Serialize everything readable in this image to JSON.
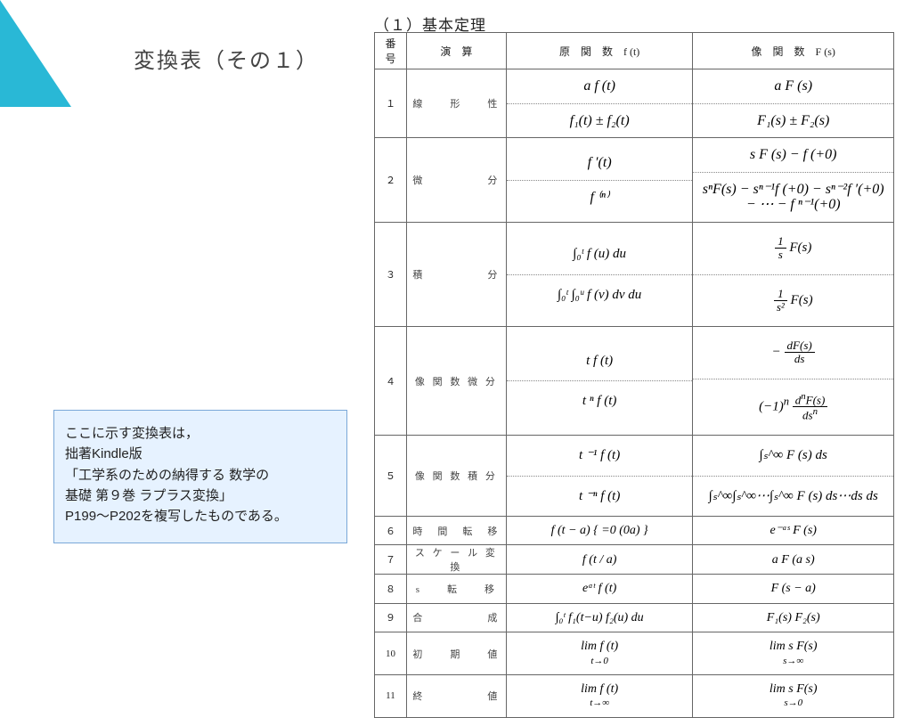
{
  "colors": {
    "accent": "#29b8d6",
    "noteBg": "#e6f2ff",
    "noteBorder": "#7aa8d8",
    "border": "#666"
  },
  "title": "変換表（その１）",
  "tableTitle": "（１）基本定理",
  "note": {
    "l1": "ここに示す変換表は，",
    "l2": "拙著Kindle版",
    "l3": "「工学系のための納得する 数学の",
    "l4": "基礎 第９巻 ラプラス変換」",
    "l5": "P199～P202を複写したものである。"
  },
  "headers": {
    "num": "番 号",
    "op": "演　算",
    "f": "原　関　数　f (t)",
    "F": "像　関　数　F (s)"
  },
  "rows": [
    {
      "n": "１",
      "op": "線　　形　　性",
      "f": [
        "a f (t)",
        "f₁(t) ± f₂(t)"
      ],
      "F": [
        "a F (s)",
        "F₁(s) ± F₂(s)"
      ]
    },
    {
      "n": "２",
      "op": "微　　　　　分",
      "f": [
        "f ′(t)",
        "f ⁽ⁿ⁾"
      ],
      "F": [
        "s F (s) − f (+0)",
        "sⁿF(s) − sⁿ⁻¹f (+0) − sⁿ⁻²f ′(+0)\n− ⋯ − f ⁿ⁻¹(+0)"
      ]
    },
    {
      "n": "３",
      "op": "積　　　　　分",
      "f": [
        "∫₀ᵗ f (u) du",
        "∫₀ᵗ ∫₀ᵘ f (v) dv du"
      ],
      "F": [
        "(1/s) F (s)",
        "(1/s²) F (s)"
      ]
    },
    {
      "n": "４",
      "op": "像 関 数 微 分",
      "f": [
        "t f (t)",
        "t ⁿ f (t)"
      ],
      "F": [
        "− dF(s)/ds",
        "(−1)ⁿ dⁿF(s)/dsⁿ"
      ]
    },
    {
      "n": "５",
      "op": "像 関 数 積 分",
      "f": [
        "t ⁻¹ f (t)",
        "t ⁻ⁿ f (t)"
      ],
      "F": [
        "∫ₛ^∞ F (s) ds",
        "∫ₛ^∞∫ₛ^∞⋯∫ₛ^∞ F (s) ds⋯ds ds"
      ]
    },
    {
      "n": "６",
      "op": "時　間　転　移",
      "f": [
        "f (t − a) { =0 (0<t<a); ≠0 (t>a) }"
      ],
      "F": [
        "e⁻ᵃˢ F (s)"
      ]
    },
    {
      "n": "７",
      "op": "ス ケ ー ル 変 換",
      "f": [
        "f (t / a)"
      ],
      "F": [
        "a F (a s)"
      ]
    },
    {
      "n": "８",
      "op": "s　　転　　移",
      "f": [
        "eᵅᵗ f (t)"
      ],
      "F": [
        "F (s − a)"
      ]
    },
    {
      "n": "９",
      "op": "合　　　　　成",
      "f": [
        "∫₀ᵗ f₁(t−u) f₂(u) du"
      ],
      "F": [
        "F₁(s) F₂(s)"
      ]
    },
    {
      "n": "10",
      "op": "初　　期　　値",
      "f": [
        "lim  f (t)",
        "t→0"
      ],
      "F": [
        "lim  s F(s)",
        "s→∞"
      ]
    },
    {
      "n": "11",
      "op": "終　　　　　値",
      "f": [
        "lim  f (t)",
        "t→∞"
      ],
      "F": [
        "lim  s F(s)",
        "s→0"
      ]
    }
  ]
}
